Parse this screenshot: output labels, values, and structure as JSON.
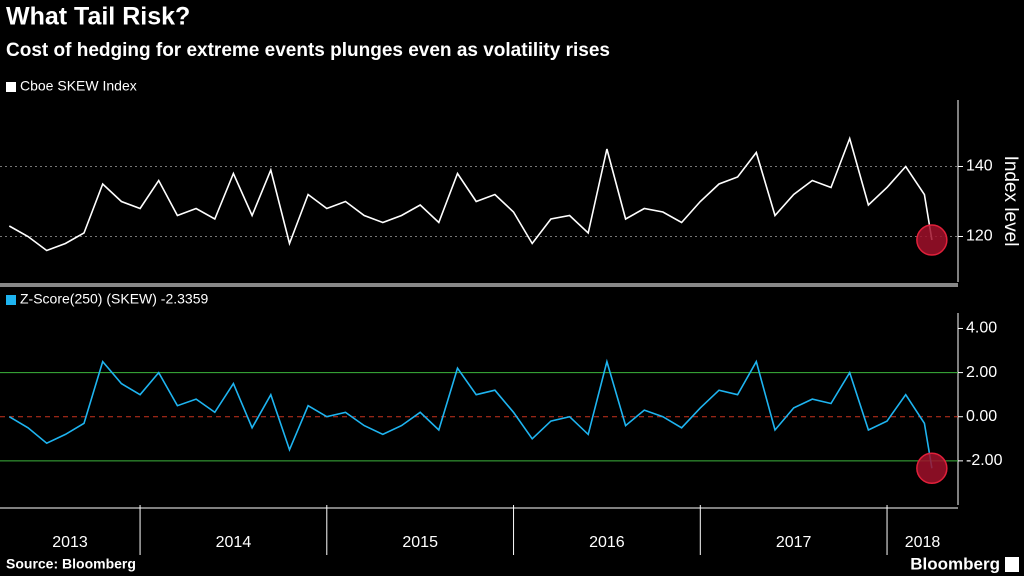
{
  "header": {
    "title": "What Tail Risk?",
    "subtitle": "Cost of hedging for extreme events plunges even as volatility rises"
  },
  "footer": {
    "source": "Source: Bloomberg",
    "brand": "Bloomberg"
  },
  "chart_data": [
    {
      "type": "line",
      "ylabel": "Index level",
      "x": [
        2013.3,
        2013.4,
        2013.5,
        2013.6,
        2013.7,
        2013.8,
        2013.9,
        2014.0,
        2014.1,
        2014.2,
        2014.3,
        2014.4,
        2014.5,
        2014.6,
        2014.7,
        2014.8,
        2014.9,
        2015.0,
        2015.1,
        2015.2,
        2015.3,
        2015.4,
        2015.5,
        2015.6,
        2015.7,
        2015.8,
        2015.9,
        2016.0,
        2016.1,
        2016.2,
        2016.3,
        2016.4,
        2016.5,
        2016.6,
        2016.7,
        2016.8,
        2016.9,
        2017.0,
        2017.1,
        2017.2,
        2017.3,
        2017.4,
        2017.5,
        2017.6,
        2017.7,
        2017.8,
        2017.9,
        2018.0,
        2018.1,
        2018.2,
        2018.24
      ],
      "series": [
        {
          "name": "Cboe SKEW Index",
          "color": "#ffffff",
          "values": [
            123,
            120,
            116,
            118,
            121,
            135,
            130,
            128,
            136,
            126,
            128,
            125,
            138,
            126,
            139,
            118,
            132,
            128,
            130,
            126,
            124,
            126,
            129,
            124,
            138,
            130,
            132,
            127,
            118,
            125,
            126,
            121,
            145,
            125,
            128,
            127,
            124,
            130,
            135,
            137,
            144,
            126,
            132,
            136,
            134,
            148,
            129,
            134,
            140,
            132,
            119
          ]
        }
      ],
      "xlim": [
        2013.25,
        2018.38
      ],
      "ylim": [
        107,
        159
      ],
      "yticks": [
        120,
        140
      ],
      "grid": true,
      "highlight_last": true
    },
    {
      "type": "line",
      "x": [
        2013.3,
        2013.4,
        2013.5,
        2013.6,
        2013.7,
        2013.8,
        2013.9,
        2014.0,
        2014.1,
        2014.2,
        2014.3,
        2014.4,
        2014.5,
        2014.6,
        2014.7,
        2014.8,
        2014.9,
        2015.0,
        2015.1,
        2015.2,
        2015.3,
        2015.4,
        2015.5,
        2015.6,
        2015.7,
        2015.8,
        2015.9,
        2016.0,
        2016.1,
        2016.2,
        2016.3,
        2016.4,
        2016.5,
        2016.6,
        2016.7,
        2016.8,
        2016.9,
        2017.0,
        2017.1,
        2017.2,
        2017.3,
        2017.4,
        2017.5,
        2017.6,
        2017.7,
        2017.8,
        2017.9,
        2018.0,
        2018.1,
        2018.2,
        2018.24
      ],
      "series": [
        {
          "name": "Z-Score(250) (SKEW) -2.3359",
          "color": "#1eb4f0",
          "values": [
            0.0,
            -0.5,
            -1.2,
            -0.8,
            -0.3,
            2.5,
            1.5,
            1.0,
            2.0,
            0.5,
            0.8,
            0.2,
            1.5,
            -0.5,
            1.0,
            -1.5,
            0.5,
            0.0,
            0.2,
            -0.4,
            -0.8,
            -0.4,
            0.2,
            -0.6,
            2.2,
            1.0,
            1.2,
            0.2,
            -1.0,
            -0.2,
            0.0,
            -0.8,
            2.5,
            -0.4,
            0.3,
            0.0,
            -0.5,
            0.4,
            1.2,
            1.0,
            2.5,
            -0.6,
            0.4,
            0.8,
            0.6,
            2.0,
            -0.6,
            -0.2,
            1.0,
            -0.3,
            -2.3359
          ]
        }
      ],
      "xlim": [
        2013.25,
        2018.38
      ],
      "ylim": [
        -4,
        4.7
      ],
      "yticks": [
        {
          "value": 4,
          "label": "4.00"
        },
        {
          "value": 2,
          "label": "2.00"
        },
        {
          "value": 0,
          "label": "0.00"
        },
        {
          "value": -2,
          "label": "-2.00"
        }
      ],
      "hlines": [
        {
          "value": 2,
          "color": "#3cb43c",
          "dash": false
        },
        {
          "value": 0,
          "color": "#c8321e",
          "dash": true
        },
        {
          "value": -2,
          "color": "#3cb43c",
          "dash": false
        }
      ],
      "xticks": [
        2014,
        2015,
        2016,
        2017,
        2018
      ],
      "xlabels": [
        2013,
        2014,
        2015,
        2016,
        2017,
        2018
      ],
      "highlight_last": true
    }
  ]
}
